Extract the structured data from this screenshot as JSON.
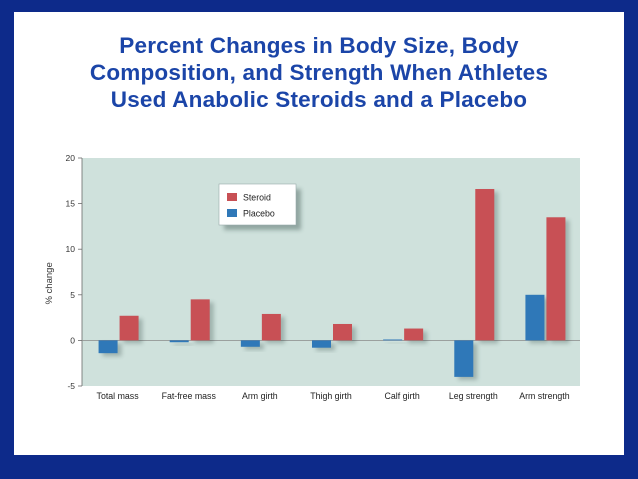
{
  "title_lines": [
    "Percent Changes in Body Size, Body",
    "Composition, and Strength When Athletes",
    "Used Anabolic Steroids and a Placebo"
  ],
  "colors": {
    "background": "#0d2a8a",
    "title": "#1b45a8",
    "plot_area": "#cfe1dc",
    "steroid": "#c85055",
    "placebo": "#2f78b8"
  },
  "chart_data": {
    "type": "bar",
    "categories": [
      "Total mass",
      "Fat-free mass",
      "Arm girth",
      "Thigh girth",
      "Calf girth",
      "Leg strength",
      "Arm strength"
    ],
    "series": [
      {
        "name": "Steroid",
        "values": [
          2.7,
          4.5,
          2.9,
          1.8,
          1.3,
          16.6,
          13.5
        ]
      },
      {
        "name": "Placebo",
        "values": [
          -1.4,
          -0.2,
          -0.7,
          -0.8,
          0.1,
          -4.0,
          5.0
        ]
      }
    ],
    "ylabel": "% change",
    "xlabel": "",
    "ylim": [
      -5,
      20
    ],
    "yticks": [
      -5,
      0,
      5,
      10,
      15,
      20
    ],
    "legend_position": "top-left"
  }
}
